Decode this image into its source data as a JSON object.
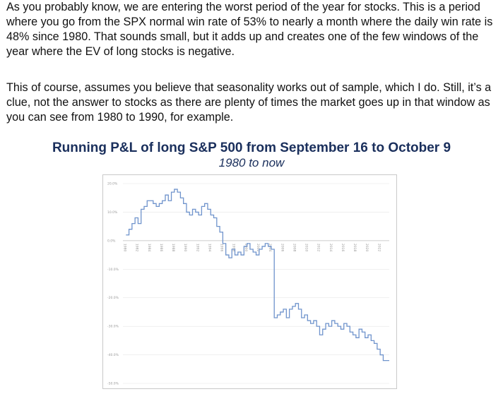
{
  "article": {
    "paragraph1": "As you probably know, we are entering the worst period of the year for stocks. This is a period where you go from the SPX normal win rate of 53% to nearly a month where the daily win rate is 48% since 1980. That sounds small, but it adds up and creates one of the few windows of the year where the EV of long stocks is negative.",
    "paragraph2": "This of course, assumes you believe that seasonality works out of sample, which I do. Still, it’s a clue, not the answer to stocks as there are plenty of times the market goes up in that window as you can see from 1980 to 1990, for example."
  },
  "colors": {
    "line": "#6f93cc",
    "title": "#1a2f5c",
    "grid": "#e6e6e6",
    "axis": "#bdbdbd"
  },
  "chart_data": {
    "type": "line",
    "title": "Running P&L of long S&P 500 from September 16 to October 9",
    "subtitle": "1980 to now",
    "ylim": [
      -50,
      20
    ],
    "yticks": [
      "20.0%",
      "10.0%",
      "0.0%",
      "-10.0%",
      "-20.0%",
      "-30.0%",
      "-40.0%",
      "-50.0%"
    ],
    "ytick_values": [
      20,
      10,
      0,
      -10,
      -20,
      -30,
      -40,
      -50
    ],
    "xticks": [
      "1980",
      "1982",
      "1984",
      "1986",
      "1988",
      "1990",
      "1992",
      "1994",
      "1996",
      "1998",
      "2000",
      "2002",
      "2004",
      "2006",
      "2008",
      "2010",
      "2012",
      "2014",
      "2016",
      "2018",
      "2020",
      "2022"
    ],
    "xlim": [
      1980,
      2024
    ],
    "grid": true,
    "step": true,
    "x": [
      1980.5,
      1981,
      1981.5,
      1982,
      1982.5,
      1983,
      1983.5,
      1984,
      1984.5,
      1985,
      1985.5,
      1986,
      1986.5,
      1987,
      1987.5,
      1988,
      1988.5,
      1989,
      1989.5,
      1990,
      1990.5,
      1991,
      1991.5,
      1992,
      1992.5,
      1993,
      1993.5,
      1994,
      1994.5,
      1995,
      1995.5,
      1996,
      1996.5,
      1997,
      1997.5,
      1998,
      1998.5,
      1999,
      1999.5,
      2000,
      2000.5,
      2001,
      2001.5,
      2002,
      2002.5,
      2003,
      2003.5,
      2004,
      2004.5,
      2005,
      2005.5,
      2006,
      2006.5,
      2007,
      2007.5,
      2008,
      2008.5,
      2009,
      2009.5,
      2010,
      2010.5,
      2011,
      2011.5,
      2012,
      2012.5,
      2013,
      2013.5,
      2014,
      2014.5,
      2015,
      2015.5,
      2016,
      2016.5,
      2017,
      2017.5,
      2018,
      2018.5,
      2019,
      2019.5,
      2020,
      2020.5,
      2021,
      2021.5,
      2022,
      2022.5,
      2023,
      2023.5
    ],
    "values": [
      2,
      4,
      6,
      8,
      6,
      11,
      12,
      14,
      14,
      13,
      12,
      13,
      14,
      16,
      14,
      17,
      18,
      17,
      15,
      13,
      10,
      9,
      11,
      10,
      9,
      12,
      13,
      11,
      9,
      8,
      5,
      3,
      -1,
      -5,
      -6,
      -3,
      -5,
      -4,
      -5,
      -2,
      -1,
      -3,
      -4,
      -5,
      -3,
      -2,
      -1,
      -2,
      -3,
      -27,
      -26,
      -25,
      -24,
      -27,
      -24,
      -23,
      -22,
      -24,
      -27,
      -26,
      -28,
      -29,
      -28,
      -30,
      -33,
      -31,
      -29,
      -30,
      -28,
      -29,
      -30,
      -31,
      -29,
      -30,
      -32,
      -33,
      -34,
      -31,
      -32,
      -34,
      -33,
      -35,
      -36,
      -38,
      -40,
      -42,
      -42
    ]
  }
}
